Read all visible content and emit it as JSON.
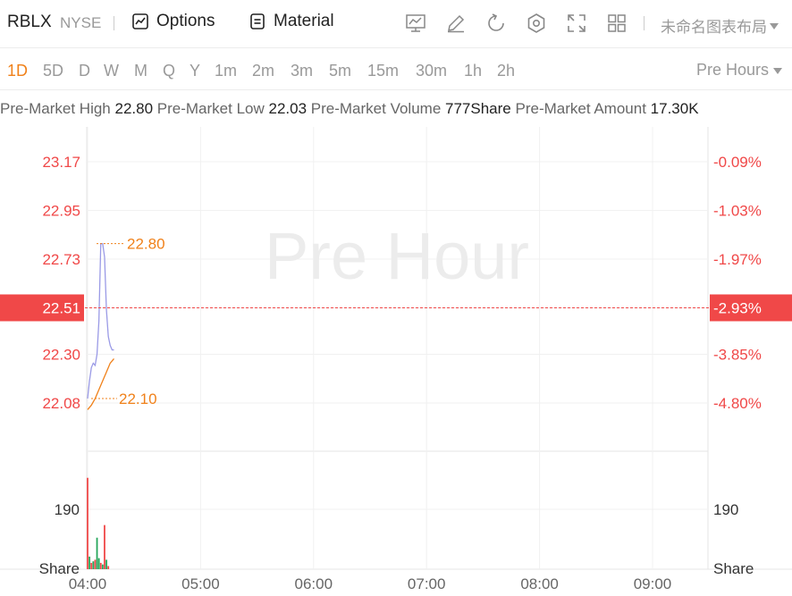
{
  "toolbar": {
    "symbol": "RBLX",
    "exchange": "NYSE",
    "options_label": "Options",
    "material_label": "Material",
    "layout_name": "未命名图表布局"
  },
  "periods": [
    "1D",
    "5D",
    "D",
    "W",
    "M",
    "Q",
    "Y",
    "1m",
    "2m",
    "3m",
    "5m",
    "15m",
    "30m",
    "1h",
    "2h"
  ],
  "active_period": "1D",
  "session": "Pre Hours",
  "stats": {
    "high_label": "Pre-Market High",
    "high_value": "22.80",
    "low_label": "Pre-Market Low",
    "low_value": "22.03",
    "volume_label": "Pre-Market Volume",
    "volume_value": "777Share",
    "amount_label": "Pre-Market Amount",
    "amount_value": "17.30K"
  },
  "watermark": "Pre Hour",
  "colors": {
    "accent": "#f0811a",
    "down": "#f04848",
    "up": "#26a65b",
    "line": "#9a9ae6"
  },
  "chart_data": {
    "type": "line",
    "price_ticks_left": [
      "23.17",
      "22.95",
      "22.73",
      "22.51",
      "22.30",
      "22.08"
    ],
    "price_ticks_right": [
      "-0.09%",
      "-1.03%",
      "-1.97%",
      "-2.93%",
      "-3.85%",
      "-4.80%"
    ],
    "current_price": "22.51",
    "current_pct": "-2.93%",
    "high_marker": "22.80",
    "low_marker": "22.10",
    "volume_tick_left": "190",
    "volume_tick_right": "190",
    "volume_unit_left": "Share",
    "volume_unit_right": "Share",
    "x_ticks": [
      "04:00",
      "05:00",
      "06:00",
      "07:00",
      "08:00",
      "09:00"
    ],
    "price_series": {
      "x": [
        "04:00",
        "04:01",
        "04:02",
        "04:03",
        "04:04",
        "04:05",
        "04:06",
        "04:07",
        "04:08",
        "04:09",
        "04:10",
        "04:11",
        "04:12",
        "04:13",
        "04:14"
      ],
      "values": [
        22.1,
        22.18,
        22.24,
        22.26,
        22.25,
        22.3,
        22.45,
        22.8,
        22.8,
        22.74,
        22.5,
        22.38,
        22.34,
        22.32,
        22.32
      ]
    },
    "avg_series": {
      "x": [
        "04:00",
        "04:02",
        "04:04",
        "04:06",
        "04:08",
        "04:10",
        "04:12",
        "04:14"
      ],
      "values": [
        22.05,
        22.07,
        22.1,
        22.14,
        22.18,
        22.22,
        22.26,
        22.28
      ]
    },
    "volume_series": {
      "x": [
        "04:00",
        "04:01",
        "04:02",
        "04:03",
        "04:04",
        "04:05",
        "04:06",
        "04:07",
        "04:08",
        "04:09",
        "04:10",
        "04:11"
      ],
      "values": [
        290,
        40,
        20,
        25,
        30,
        100,
        35,
        20,
        15,
        140,
        30,
        10
      ],
      "up": [
        false,
        true,
        false,
        true,
        false,
        true,
        true,
        false,
        true,
        false,
        true,
        false
      ]
    }
  }
}
